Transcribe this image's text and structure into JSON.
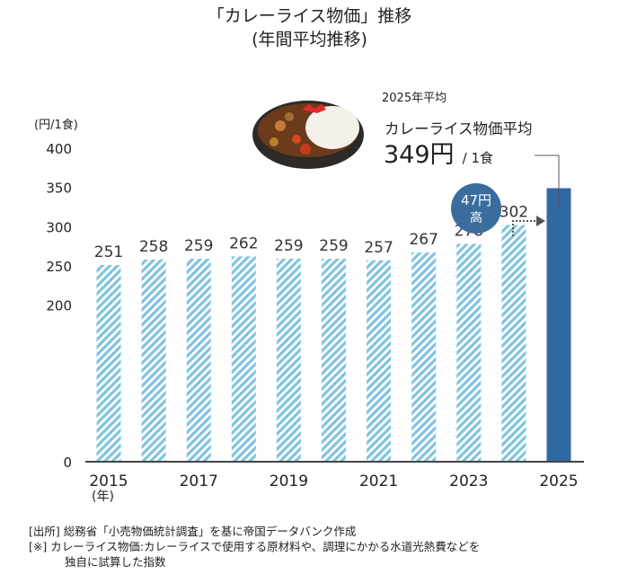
{
  "title_line1": "「カレーライス物価」推移",
  "title_line2": "(年間平均推移)",
  "annotation": {
    "period": "2025年平均",
    "label": "カレーライス物価平均",
    "value": "349円",
    "unit": "/ 1食",
    "badge_line1": "47円",
    "badge_line2": "高"
  },
  "chart_data": {
    "type": "bar",
    "categories": [
      "2015",
      "2016",
      "2017",
      "2018",
      "2019",
      "2020",
      "2021",
      "2022",
      "2023",
      "2024",
      "2025"
    ],
    "values": [
      251,
      258,
      259,
      262,
      259,
      259,
      257,
      267,
      278,
      302,
      349
    ],
    "data_labels": [
      "251",
      "258",
      "259",
      "262",
      "259",
      "259",
      "257",
      "267",
      "278",
      "302",
      ""
    ],
    "x_tick_labels": [
      "2015",
      "2017",
      "2019",
      "2021",
      "2023",
      "2025"
    ],
    "x_unit_label": "(年)",
    "ylabel": "(円/1食)",
    "ylim": [
      0,
      400
    ],
    "y_ticks": [
      "0",
      "200",
      "250",
      "300",
      "350",
      "400"
    ],
    "y_tick_values": [
      0,
      200,
      250,
      300,
      350,
      400
    ],
    "grid": false,
    "colors": {
      "hatched": "#7fc4e0",
      "highlight": "#2f6aa3",
      "badge": "#3a6c9e"
    }
  },
  "notes": {
    "source": "[出所] 総務省「小売物価統計調査」を基に帝国データバンク作成",
    "remark_line1": "[※] カレーライス物価:カレーライスで使用する原材料や、調理にかかる水道光熱費などを",
    "remark_line2": "独自に試算した指数"
  }
}
